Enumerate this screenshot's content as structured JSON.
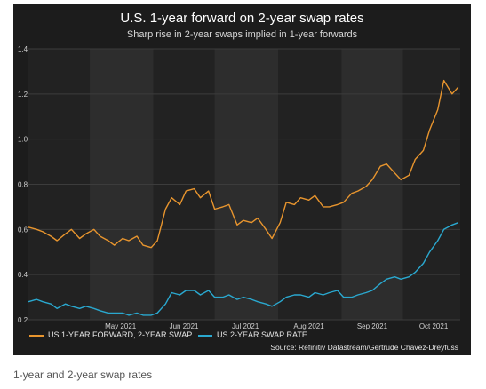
{
  "chart_data": {
    "type": "line",
    "title": "U.S. 1-year forward on 2-year swap rates",
    "subtitle": "Sharp rise in 2-year swaps implied in 1-year forwards",
    "xlabel": "",
    "ylabel": "",
    "ylim": [
      0.2,
      1.4
    ],
    "yticks": [
      0.2,
      0.4,
      0.6,
      0.8,
      1.0,
      1.2,
      1.4
    ],
    "ytick_labels": [
      "0.2",
      "0.4",
      "0.6",
      "0.8",
      "1.0",
      "1.2",
      "1.4"
    ],
    "xlim": [
      "2021-04-01",
      "2021-10-29"
    ],
    "xtick_labels": [
      "May 2021",
      "Jun 2021",
      "Jul 2021",
      "Aug 2021",
      "Sep 2021",
      "Oct 2021"
    ],
    "xtick_dates": [
      "2021-05-16",
      "2021-06-16",
      "2021-07-16",
      "2021-08-16",
      "2021-09-16",
      "2021-10-16"
    ],
    "month_band_starts": [
      "2021-05-01",
      "2021-07-01",
      "2021-09-01"
    ],
    "month_band_ends": [
      "2021-06-01",
      "2021-08-01",
      "2021-10-01"
    ],
    "grid": true,
    "legend_position": "bottom-left",
    "series": [
      {
        "name": "US 1-YEAR FORWARD, 2-YEAR SWAP",
        "color": "#e8952e",
        "x": [
          "2021-04-01",
          "2021-04-05",
          "2021-04-08",
          "2021-04-12",
          "2021-04-15",
          "2021-04-19",
          "2021-04-22",
          "2021-04-26",
          "2021-04-29",
          "2021-05-03",
          "2021-05-06",
          "2021-05-10",
          "2021-05-13",
          "2021-05-17",
          "2021-05-20",
          "2021-05-24",
          "2021-05-27",
          "2021-05-31",
          "2021-06-03",
          "2021-06-07",
          "2021-06-10",
          "2021-06-14",
          "2021-06-17",
          "2021-06-21",
          "2021-06-24",
          "2021-06-28",
          "2021-07-01",
          "2021-07-05",
          "2021-07-08",
          "2021-07-12",
          "2021-07-15",
          "2021-07-19",
          "2021-07-22",
          "2021-07-26",
          "2021-07-29",
          "2021-08-02",
          "2021-08-05",
          "2021-08-09",
          "2021-08-12",
          "2021-08-16",
          "2021-08-19",
          "2021-08-23",
          "2021-08-26",
          "2021-08-30",
          "2021-09-02",
          "2021-09-06",
          "2021-09-09",
          "2021-09-13",
          "2021-09-16",
          "2021-09-20",
          "2021-09-23",
          "2021-09-27",
          "2021-09-30",
          "2021-10-04",
          "2021-10-07",
          "2021-10-11",
          "2021-10-14",
          "2021-10-18",
          "2021-10-21",
          "2021-10-25",
          "2021-10-28"
        ],
        "values": [
          0.61,
          0.6,
          0.59,
          0.57,
          0.55,
          0.58,
          0.6,
          0.56,
          0.58,
          0.6,
          0.57,
          0.55,
          0.53,
          0.56,
          0.55,
          0.57,
          0.53,
          0.52,
          0.55,
          0.69,
          0.74,
          0.71,
          0.77,
          0.78,
          0.74,
          0.77,
          0.69,
          0.7,
          0.71,
          0.62,
          0.64,
          0.63,
          0.65,
          0.6,
          0.56,
          0.63,
          0.72,
          0.71,
          0.74,
          0.73,
          0.75,
          0.7,
          0.7,
          0.71,
          0.72,
          0.76,
          0.77,
          0.79,
          0.82,
          0.88,
          0.89,
          0.85,
          0.82,
          0.84,
          0.91,
          0.95,
          1.04,
          1.13,
          1.26,
          1.2,
          1.23
        ]
      },
      {
        "name": "US 2-YEAR SWAP RATE",
        "color": "#2aa8cf",
        "x": [
          "2021-04-01",
          "2021-04-05",
          "2021-04-08",
          "2021-04-12",
          "2021-04-15",
          "2021-04-19",
          "2021-04-22",
          "2021-04-26",
          "2021-04-29",
          "2021-05-03",
          "2021-05-06",
          "2021-05-10",
          "2021-05-13",
          "2021-05-17",
          "2021-05-20",
          "2021-05-24",
          "2021-05-27",
          "2021-05-31",
          "2021-06-03",
          "2021-06-07",
          "2021-06-10",
          "2021-06-14",
          "2021-06-17",
          "2021-06-21",
          "2021-06-24",
          "2021-06-28",
          "2021-07-01",
          "2021-07-05",
          "2021-07-08",
          "2021-07-12",
          "2021-07-15",
          "2021-07-19",
          "2021-07-22",
          "2021-07-26",
          "2021-07-29",
          "2021-08-02",
          "2021-08-05",
          "2021-08-09",
          "2021-08-12",
          "2021-08-16",
          "2021-08-19",
          "2021-08-23",
          "2021-08-26",
          "2021-08-30",
          "2021-09-02",
          "2021-09-06",
          "2021-09-09",
          "2021-09-13",
          "2021-09-16",
          "2021-09-20",
          "2021-09-23",
          "2021-09-27",
          "2021-09-30",
          "2021-10-04",
          "2021-10-07",
          "2021-10-11",
          "2021-10-14",
          "2021-10-18",
          "2021-10-21",
          "2021-10-25",
          "2021-10-28"
        ],
        "values": [
          0.28,
          0.29,
          0.28,
          0.27,
          0.25,
          0.27,
          0.26,
          0.25,
          0.26,
          0.25,
          0.24,
          0.23,
          0.23,
          0.23,
          0.22,
          0.23,
          0.22,
          0.22,
          0.23,
          0.27,
          0.32,
          0.31,
          0.33,
          0.33,
          0.31,
          0.33,
          0.3,
          0.3,
          0.31,
          0.29,
          0.3,
          0.29,
          0.28,
          0.27,
          0.26,
          0.28,
          0.3,
          0.31,
          0.31,
          0.3,
          0.32,
          0.31,
          0.32,
          0.33,
          0.3,
          0.3,
          0.31,
          0.32,
          0.33,
          0.36,
          0.38,
          0.39,
          0.38,
          0.39,
          0.41,
          0.45,
          0.5,
          0.55,
          0.6,
          0.62,
          0.63
        ]
      }
    ],
    "source": "Source: Refinitiv Datastream/Gertrude Chavez-Dreyfuss"
  },
  "caption": "1-year and 2-year swap rates"
}
